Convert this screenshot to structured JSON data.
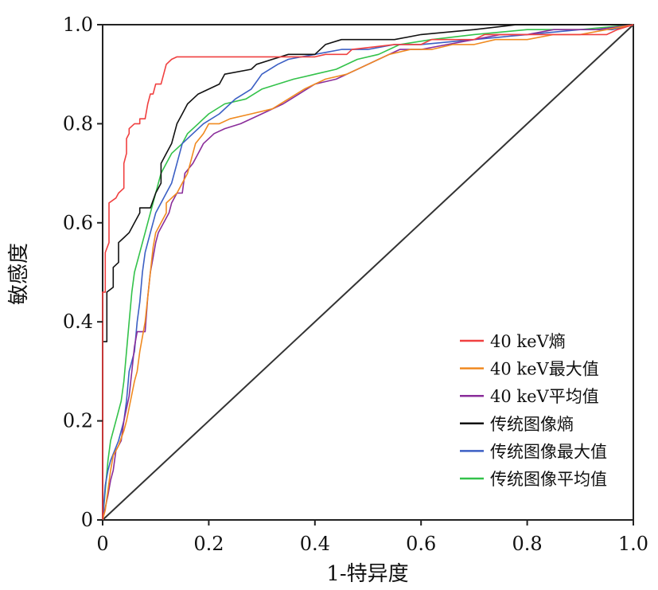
{
  "chart_data": {
    "type": "line",
    "xlabel": "1-特异度",
    "ylabel": "敏感度",
    "xlim": [
      0,
      1
    ],
    "ylim": [
      0,
      1
    ],
    "x_ticks": [
      "0",
      "0.2",
      "0.4",
      "0.6",
      "0.8",
      "1.0"
    ],
    "y_ticks": [
      "0",
      "0.2",
      "0.4",
      "0.6",
      "0.8",
      "1.0"
    ],
    "grid": false,
    "legend_position": "bottom-right",
    "reference_line": {
      "from": [
        0,
        0
      ],
      "to": [
        1,
        1
      ],
      "color": "#333333"
    },
    "series": [
      {
        "name": "40 keV熵",
        "color": "#f04040",
        "points": [
          [
            0,
            0
          ],
          [
            0,
            0.46
          ],
          [
            0.005,
            0.46
          ],
          [
            0.005,
            0.54
          ],
          [
            0.012,
            0.56
          ],
          [
            0.012,
            0.64
          ],
          [
            0.025,
            0.65
          ],
          [
            0.03,
            0.66
          ],
          [
            0.04,
            0.67
          ],
          [
            0.04,
            0.72
          ],
          [
            0.045,
            0.74
          ],
          [
            0.045,
            0.77
          ],
          [
            0.05,
            0.78
          ],
          [
            0.05,
            0.79
          ],
          [
            0.06,
            0.8
          ],
          [
            0.07,
            0.8
          ],
          [
            0.07,
            0.81
          ],
          [
            0.08,
            0.81
          ],
          [
            0.085,
            0.84
          ],
          [
            0.09,
            0.86
          ],
          [
            0.095,
            0.86
          ],
          [
            0.1,
            0.88
          ],
          [
            0.11,
            0.88
          ],
          [
            0.115,
            0.9
          ],
          [
            0.12,
            0.92
          ],
          [
            0.13,
            0.93
          ],
          [
            0.14,
            0.935
          ],
          [
            0.2,
            0.935
          ],
          [
            0.4,
            0.935
          ],
          [
            0.42,
            0.94
          ],
          [
            0.46,
            0.94
          ],
          [
            0.47,
            0.95
          ],
          [
            0.55,
            0.96
          ],
          [
            0.6,
            0.96
          ],
          [
            0.62,
            0.97
          ],
          [
            0.7,
            0.97
          ],
          [
            0.72,
            0.98
          ],
          [
            0.95,
            0.98
          ],
          [
            0.97,
            0.99
          ],
          [
            1,
            1
          ]
        ]
      },
      {
        "name": "40 keV最大值",
        "color": "#f08a20",
        "points": [
          [
            0,
            0
          ],
          [
            0.005,
            0.02
          ],
          [
            0.01,
            0.06
          ],
          [
            0.015,
            0.1
          ],
          [
            0.02,
            0.13
          ],
          [
            0.03,
            0.15
          ],
          [
            0.04,
            0.18
          ],
          [
            0.045,
            0.2
          ],
          [
            0.06,
            0.28
          ],
          [
            0.065,
            0.3
          ],
          [
            0.07,
            0.34
          ],
          [
            0.08,
            0.4
          ],
          [
            0.085,
            0.45
          ],
          [
            0.09,
            0.5
          ],
          [
            0.095,
            0.55
          ],
          [
            0.1,
            0.58
          ],
          [
            0.11,
            0.6
          ],
          [
            0.12,
            0.62
          ],
          [
            0.12,
            0.64
          ],
          [
            0.14,
            0.66
          ],
          [
            0.15,
            0.68
          ],
          [
            0.16,
            0.7
          ],
          [
            0.165,
            0.72
          ],
          [
            0.17,
            0.74
          ],
          [
            0.175,
            0.76
          ],
          [
            0.19,
            0.78
          ],
          [
            0.2,
            0.8
          ],
          [
            0.22,
            0.8
          ],
          [
            0.24,
            0.81
          ],
          [
            0.28,
            0.82
          ],
          [
            0.32,
            0.83
          ],
          [
            0.35,
            0.85
          ],
          [
            0.38,
            0.87
          ],
          [
            0.42,
            0.89
          ],
          [
            0.46,
            0.9
          ],
          [
            0.5,
            0.92
          ],
          [
            0.54,
            0.94
          ],
          [
            0.58,
            0.95
          ],
          [
            0.62,
            0.95
          ],
          [
            0.66,
            0.96
          ],
          [
            0.7,
            0.96
          ],
          [
            0.74,
            0.97
          ],
          [
            0.8,
            0.97
          ],
          [
            0.85,
            0.98
          ],
          [
            0.9,
            0.98
          ],
          [
            0.95,
            0.99
          ],
          [
            1,
            1
          ]
        ]
      },
      {
        "name": "40 keV平均值",
        "color": "#8a2d9a",
        "points": [
          [
            0,
            0
          ],
          [
            0.01,
            0.05
          ],
          [
            0.015,
            0.08
          ],
          [
            0.02,
            0.1
          ],
          [
            0.025,
            0.14
          ],
          [
            0.035,
            0.16
          ],
          [
            0.04,
            0.2
          ],
          [
            0.05,
            0.25
          ],
          [
            0.055,
            0.3
          ],
          [
            0.06,
            0.35
          ],
          [
            0.065,
            0.38
          ],
          [
            0.08,
            0.38
          ],
          [
            0.085,
            0.45
          ],
          [
            0.09,
            0.5
          ],
          [
            0.095,
            0.53
          ],
          [
            0.1,
            0.56
          ],
          [
            0.105,
            0.58
          ],
          [
            0.115,
            0.6
          ],
          [
            0.125,
            0.62
          ],
          [
            0.13,
            0.64
          ],
          [
            0.14,
            0.66
          ],
          [
            0.15,
            0.66
          ],
          [
            0.155,
            0.7
          ],
          [
            0.17,
            0.72
          ],
          [
            0.18,
            0.74
          ],
          [
            0.19,
            0.76
          ],
          [
            0.21,
            0.78
          ],
          [
            0.23,
            0.79
          ],
          [
            0.26,
            0.8
          ],
          [
            0.3,
            0.82
          ],
          [
            0.34,
            0.84
          ],
          [
            0.37,
            0.86
          ],
          [
            0.4,
            0.88
          ],
          [
            0.44,
            0.89
          ],
          [
            0.48,
            0.91
          ],
          [
            0.52,
            0.93
          ],
          [
            0.56,
            0.95
          ],
          [
            0.6,
            0.95
          ],
          [
            0.65,
            0.96
          ],
          [
            0.7,
            0.97
          ],
          [
            0.75,
            0.98
          ],
          [
            0.8,
            0.98
          ],
          [
            0.85,
            0.99
          ],
          [
            0.93,
            0.99
          ],
          [
            1,
            1
          ]
        ]
      },
      {
        "name": "传统图像熵",
        "color": "#111111",
        "points": [
          [
            0,
            0
          ],
          [
            0,
            0.36
          ],
          [
            0.008,
            0.36
          ],
          [
            0.008,
            0.46
          ],
          [
            0.02,
            0.47
          ],
          [
            0.02,
            0.51
          ],
          [
            0.03,
            0.52
          ],
          [
            0.03,
            0.56
          ],
          [
            0.04,
            0.57
          ],
          [
            0.05,
            0.58
          ],
          [
            0.06,
            0.6
          ],
          [
            0.07,
            0.62
          ],
          [
            0.07,
            0.63
          ],
          [
            0.09,
            0.63
          ],
          [
            0.1,
            0.66
          ],
          [
            0.11,
            0.68
          ],
          [
            0.11,
            0.72
          ],
          [
            0.12,
            0.74
          ],
          [
            0.13,
            0.76
          ],
          [
            0.14,
            0.8
          ],
          [
            0.15,
            0.82
          ],
          [
            0.16,
            0.84
          ],
          [
            0.18,
            0.86
          ],
          [
            0.2,
            0.87
          ],
          [
            0.22,
            0.88
          ],
          [
            0.23,
            0.9
          ],
          [
            0.28,
            0.91
          ],
          [
            0.29,
            0.92
          ],
          [
            0.32,
            0.93
          ],
          [
            0.35,
            0.94
          ],
          [
            0.4,
            0.94
          ],
          [
            0.42,
            0.96
          ],
          [
            0.45,
            0.97
          ],
          [
            0.55,
            0.97
          ],
          [
            0.6,
            0.98
          ],
          [
            0.7,
            0.99
          ],
          [
            0.78,
            1.0
          ],
          [
            1,
            1
          ]
        ]
      },
      {
        "name": "传统图像最大值",
        "color": "#3b5fc4",
        "points": [
          [
            0,
            0
          ],
          [
            0.005,
            0.07
          ],
          [
            0.01,
            0.1
          ],
          [
            0.015,
            0.12
          ],
          [
            0.03,
            0.16
          ],
          [
            0.04,
            0.2
          ],
          [
            0.045,
            0.24
          ],
          [
            0.05,
            0.3
          ],
          [
            0.06,
            0.34
          ],
          [
            0.065,
            0.4
          ],
          [
            0.07,
            0.44
          ],
          [
            0.075,
            0.5
          ],
          [
            0.08,
            0.54
          ],
          [
            0.09,
            0.58
          ],
          [
            0.1,
            0.62
          ],
          [
            0.11,
            0.64
          ],
          [
            0.12,
            0.66
          ],
          [
            0.13,
            0.68
          ],
          [
            0.14,
            0.72
          ],
          [
            0.15,
            0.76
          ],
          [
            0.17,
            0.78
          ],
          [
            0.19,
            0.8
          ],
          [
            0.22,
            0.82
          ],
          [
            0.25,
            0.85
          ],
          [
            0.28,
            0.87
          ],
          [
            0.3,
            0.9
          ],
          [
            0.33,
            0.92
          ],
          [
            0.35,
            0.93
          ],
          [
            0.4,
            0.94
          ],
          [
            0.45,
            0.95
          ],
          [
            0.5,
            0.95
          ],
          [
            0.55,
            0.96
          ],
          [
            0.6,
            0.96
          ],
          [
            0.7,
            0.97
          ],
          [
            0.8,
            0.98
          ],
          [
            0.9,
            0.99
          ],
          [
            0.96,
            0.99
          ],
          [
            1,
            1
          ]
        ]
      },
      {
        "name": "传统图像平均值",
        "color": "#33c24a",
        "points": [
          [
            0,
            0
          ],
          [
            0.005,
            0.06
          ],
          [
            0.01,
            0.12
          ],
          [
            0.015,
            0.16
          ],
          [
            0.025,
            0.2
          ],
          [
            0.035,
            0.24
          ],
          [
            0.04,
            0.28
          ],
          [
            0.045,
            0.34
          ],
          [
            0.05,
            0.4
          ],
          [
            0.055,
            0.46
          ],
          [
            0.06,
            0.5
          ],
          [
            0.07,
            0.54
          ],
          [
            0.08,
            0.58
          ],
          [
            0.09,
            0.62
          ],
          [
            0.1,
            0.66
          ],
          [
            0.11,
            0.7
          ],
          [
            0.12,
            0.72
          ],
          [
            0.13,
            0.74
          ],
          [
            0.15,
            0.76
          ],
          [
            0.16,
            0.78
          ],
          [
            0.18,
            0.8
          ],
          [
            0.2,
            0.82
          ],
          [
            0.23,
            0.84
          ],
          [
            0.27,
            0.85
          ],
          [
            0.3,
            0.87
          ],
          [
            0.33,
            0.88
          ],
          [
            0.36,
            0.89
          ],
          [
            0.4,
            0.9
          ],
          [
            0.44,
            0.91
          ],
          [
            0.48,
            0.93
          ],
          [
            0.52,
            0.94
          ],
          [
            0.56,
            0.96
          ],
          [
            0.62,
            0.97
          ],
          [
            0.7,
            0.98
          ],
          [
            0.8,
            0.99
          ],
          [
            0.9,
            0.99
          ],
          [
            1,
            1
          ]
        ]
      }
    ]
  }
}
